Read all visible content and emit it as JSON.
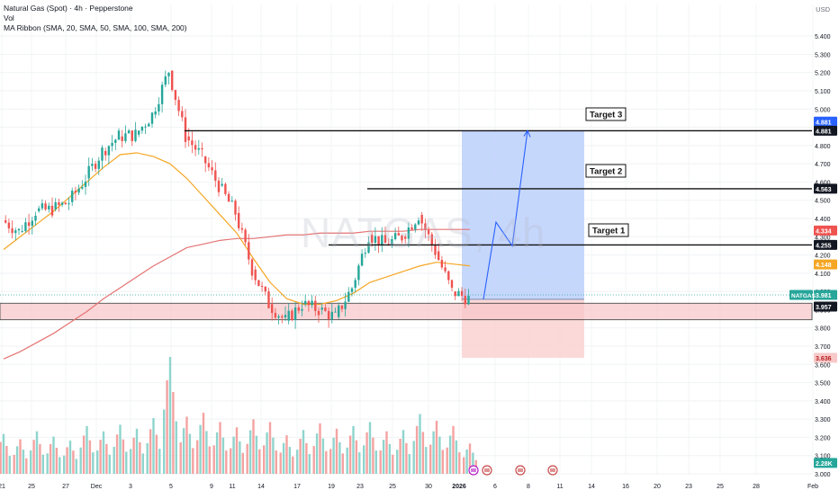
{
  "legend": {
    "title": "Natural Gas (Spot) · 4h · Pepperstone",
    "vol": "Vol",
    "ribbon": "MA Ribbon (SMA, 20, SMA, 50, SMA, 100, SMA, 200)"
  },
  "watermark": "NATGAS, 4h",
  "currency": "USD",
  "colors": {
    "up": "#26a69a",
    "down": "#ef5350",
    "vol_up": "#8fd5cd",
    "vol_down": "#f4a3a1",
    "ma50": "#f5a623",
    "ma200": "#e57373",
    "target_zone": "#bcd0fb",
    "stop_zone": "#fbd5d5",
    "support_band": "#f9c6c8",
    "projection": "#2962ff"
  },
  "chart_data": {
    "type": "candlestick",
    "title": "Natural Gas (Spot) · 4h · Pepperstone",
    "ylim": [
      3.0,
      5.45
    ],
    "y_ticks": [
      "3.000",
      "3.100",
      "3.200",
      "3.300",
      "3.400",
      "3.500",
      "3.600",
      "3.700",
      "3.800",
      "3.900",
      "4.000",
      "4.100",
      "4.200",
      "4.300",
      "4.400",
      "4.500",
      "4.600",
      "4.700",
      "4.800",
      "4.900",
      "5.000",
      "5.100",
      "5.200",
      "5.300",
      "5.400"
    ],
    "x_ticks": [
      "21",
      "25",
      "27",
      "Dec",
      "3",
      "5",
      "9",
      "11",
      "14",
      "17",
      "19",
      "23",
      "25",
      "30",
      "2026",
      "6",
      "8",
      "11",
      "14",
      "16",
      "20",
      "23",
      "25",
      "28",
      "Feb"
    ],
    "price_series": {
      "dates": [
        "Nov 21",
        "Nov 24",
        "Nov 25",
        "Nov 26",
        "Nov 27",
        "Nov 28",
        "Dec 1",
        "Dec 2",
        "Dec 3",
        "Dec 4",
        "Dec 5",
        "Dec 8",
        "Dec 9",
        "Dec 10",
        "Dec 11",
        "Dec 12",
        "Dec 15",
        "Dec 16",
        "Dec 17",
        "Dec 18",
        "Dec 19",
        "Dec 22",
        "Dec 23",
        "Dec 24",
        "Dec 26",
        "Dec 29",
        "Dec 30",
        "Dec 31",
        "Jan 2"
      ],
      "close": [
        4.39,
        4.33,
        4.44,
        4.45,
        4.49,
        4.62,
        4.77,
        4.85,
        4.86,
        4.97,
        5.21,
        4.85,
        4.74,
        4.58,
        4.43,
        4.12,
        3.93,
        3.84,
        3.93,
        3.9,
        3.86,
        4.02,
        4.31,
        4.26,
        4.3,
        4.42,
        4.22,
        4.0,
        3.96
      ]
    },
    "series": [
      {
        "name": "SMA 50",
        "values": [
          4.23,
          4.3,
          4.37,
          4.44,
          4.52,
          4.6,
          4.68,
          4.75,
          4.76,
          4.74,
          4.7,
          4.62,
          4.52,
          4.42,
          4.32,
          4.18,
          4.05,
          3.96,
          3.93,
          3.93,
          3.95,
          3.99,
          4.05,
          4.08,
          4.11,
          4.14,
          4.16,
          4.15,
          4.14
        ]
      },
      {
        "name": "SMA 200",
        "values": [
          3.63,
          3.67,
          3.72,
          3.77,
          3.83,
          3.89,
          3.96,
          4.02,
          4.08,
          4.14,
          4.19,
          4.24,
          4.26,
          4.28,
          4.29,
          4.29,
          4.3,
          4.31,
          4.31,
          4.32,
          4.32,
          4.32,
          4.33,
          4.33,
          4.33,
          4.34,
          4.34,
          4.34,
          4.34
        ]
      }
    ],
    "levels": [
      {
        "label": "Target 3",
        "price": 4.881,
        "price_label": "4.881"
      },
      {
        "label": "Target 2",
        "price": 4.563,
        "price_label": "4.563"
      },
      {
        "label": "Target 1",
        "price": 4.255,
        "price_label": "4.255"
      }
    ],
    "price_labels": [
      {
        "text": "4.881",
        "kind": "blue-tag"
      },
      {
        "text": "4.881",
        "kind": "dark-tag"
      },
      {
        "text": "4.563",
        "kind": "dark-tag"
      },
      {
        "text": "4.334",
        "kind": "red-tag"
      },
      {
        "text": "4.255",
        "kind": "dark-tag"
      },
      {
        "text": "4.148",
        "kind": "orange-tag"
      },
      {
        "text": "3.981",
        "kind": "green-tag",
        "symbol": "NATGAS"
      },
      {
        "text": "3.957",
        "kind": "dark-tag"
      },
      {
        "text": "3.636",
        "kind": "pink-tag"
      },
      {
        "text": "2.28K",
        "kind": "teal-tag"
      }
    ],
    "current_price": 3.981,
    "entry": 3.957,
    "stop": 3.636,
    "support_zone": [
      3.845,
      3.935
    ],
    "volume_last": "2.28K",
    "volume": {
      "dates": [
        "Nov 21",
        "Nov 24",
        "Nov 25",
        "Nov 26",
        "Nov 27",
        "Nov 28",
        "Dec 1",
        "Dec 2",
        "Dec 3",
        "Dec 4",
        "Dec 5",
        "Dec 8",
        "Dec 9",
        "Dec 10",
        "Dec 11",
        "Dec 12",
        "Dec 15",
        "Dec 16",
        "Dec 17",
        "Dec 18",
        "Dec 19",
        "Dec 22",
        "Dec 23",
        "Dec 24",
        "Dec 26",
        "Dec 29",
        "Dec 30",
        "Dec 31",
        "Jan 2"
      ],
      "values": [
        3000,
        2600,
        3200,
        2800,
        2500,
        3600,
        3200,
        3700,
        3400,
        4200,
        8800,
        4300,
        4600,
        3900,
        3500,
        4100,
        3900,
        2900,
        3300,
        3800,
        3400,
        3600,
        3900,
        3200,
        3300,
        4500,
        4000,
        3600,
        2280
      ]
    },
    "projection_path_prices": [
      3.957,
      4.38,
      4.25,
      4.881
    ]
  }
}
